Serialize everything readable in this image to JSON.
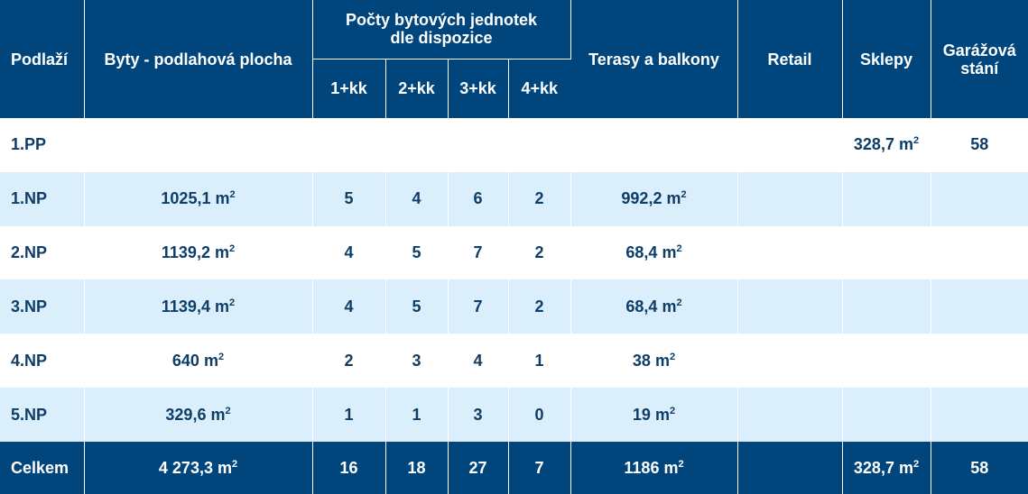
{
  "header": {
    "podlazi": "Podlaží",
    "byty_plocha": "Byty - podlahová plocha",
    "pocty_line1": "Počty bytových jednotek",
    "pocty_line2": "dle dispozice",
    "d1": "1+kk",
    "d2": "2+kk",
    "d3": "3+kk",
    "d4": "4+kk",
    "terasy": "Terasy a balkony",
    "retail": "Retail",
    "sklepy": "Sklepy",
    "garaz_line1": "Garážová",
    "garaz_line2": "stání"
  },
  "unit": "m",
  "unit_exp": "2",
  "rows": [
    {
      "floor": "1.PP",
      "area": "",
      "d1": "",
      "d2": "",
      "d3": "",
      "d4": "",
      "terraces": "",
      "retail": "",
      "cellars": "328,7",
      "parking": "58"
    },
    {
      "floor": "1.NP",
      "area": "1025,1",
      "d1": "5",
      "d2": "4",
      "d3": "6",
      "d4": "2",
      "terraces": "992,2",
      "retail": "",
      "cellars": "",
      "parking": ""
    },
    {
      "floor": "2.NP",
      "area": "1139,2",
      "d1": "4",
      "d2": "5",
      "d3": "7",
      "d4": "2",
      "terraces": "68,4",
      "retail": "",
      "cellars": "",
      "parking": ""
    },
    {
      "floor": "3.NP",
      "area": "1139,4",
      "d1": "4",
      "d2": "5",
      "d3": "7",
      "d4": "2",
      "terraces": "68,4",
      "retail": "",
      "cellars": "",
      "parking": ""
    },
    {
      "floor": "4.NP",
      "area": "640",
      "d1": "2",
      "d2": "3",
      "d3": "4",
      "d4": "1",
      "terraces": "38",
      "retail": "",
      "cellars": "",
      "parking": ""
    },
    {
      "floor": "5.NP",
      "area": "329,6",
      "d1": "1",
      "d2": "1",
      "d3": "3",
      "d4": "0",
      "terraces": "19",
      "retail": "",
      "cellars": "",
      "parking": ""
    }
  ],
  "total": {
    "label": "Celkem",
    "area": "4 273,3",
    "d1": "16",
    "d2": "18",
    "d3": "27",
    "d4": "7",
    "terraces": "1186",
    "retail": "",
    "cellars": "328,7",
    "parking": "58"
  },
  "colors": {
    "header_bg": "#00457c",
    "row_alt_bg": "#dbeefc",
    "text": "#0e3e68"
  }
}
